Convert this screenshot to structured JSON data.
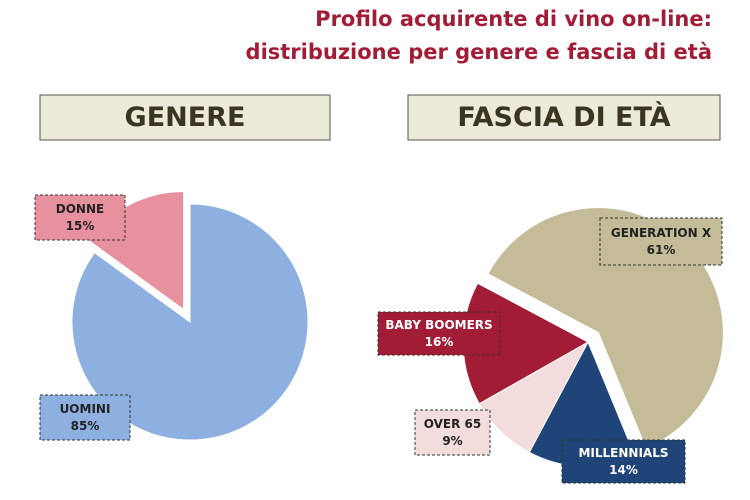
{
  "title": [
    "Profilo acquirente di vino on-line:",
    "distribuzione per genere e fascia di età"
  ],
  "chart_data": [
    {
      "type": "pie",
      "title": "GENERE",
      "categories": [
        "DONNE",
        "UOMINI"
      ],
      "values": [
        15,
        85
      ],
      "value_labels": [
        "15%",
        "85%"
      ],
      "colors": [
        "#e8919e",
        "#8db0e0"
      ]
    },
    {
      "type": "pie",
      "title": "FASCIA DI ETÀ",
      "categories": [
        "GENERATION X",
        "MILLENNIALS",
        "OVER 65",
        "BABY BOOMERS"
      ],
      "values": [
        61,
        14,
        9,
        16
      ],
      "value_labels": [
        "61%",
        "14%",
        "9%",
        "16%"
      ],
      "colors": [
        "#c4bc98",
        "#1f4478",
        "#f2dcdc",
        "#a31c35"
      ]
    }
  ]
}
